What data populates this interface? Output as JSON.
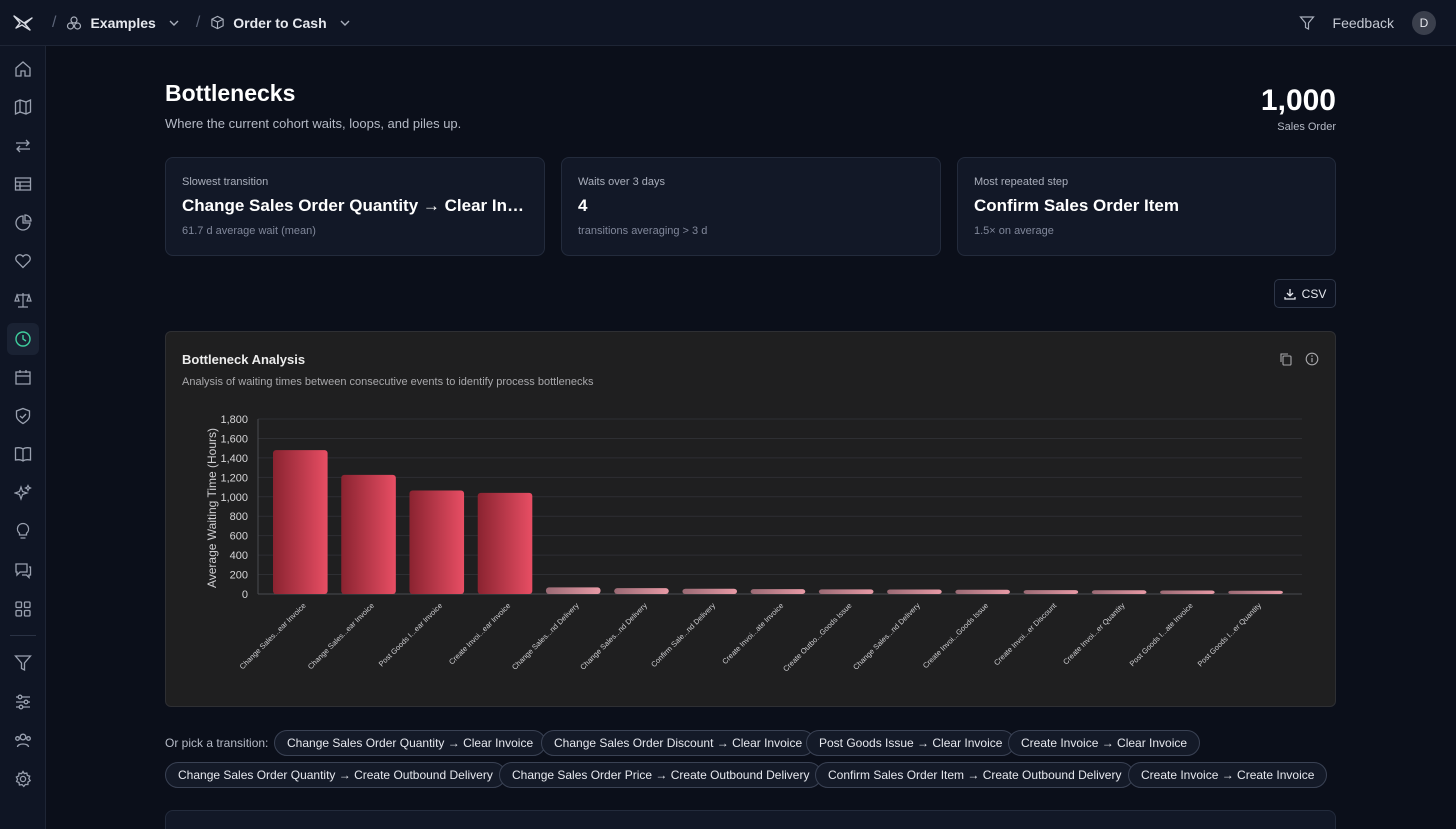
{
  "breadcrumb": {
    "workspace": "Examples",
    "process": "Order to Cash"
  },
  "topbar": {
    "feedback": "Feedback",
    "avatar_initial": "D"
  },
  "sidebar": {
    "items": [
      "home-icon",
      "map-icon",
      "arrows-icon",
      "table-icon",
      "pie-chart-icon",
      "heart-icon",
      "scale-icon",
      "clock-icon",
      "calendar-icon",
      "shield-check-icon",
      "book-icon",
      "sparkles-icon",
      "lightbulb-icon",
      "chat-icon",
      "apps-grid-icon",
      "filter-icon",
      "sliders-icon",
      "users-icon",
      "gear-icon"
    ],
    "active": "clock-icon"
  },
  "header": {
    "title": "Bottlenecks",
    "subtitle": "Where the current cohort waits, loops, and piles up.",
    "count_value": "1,000",
    "count_label": "Sales Order"
  },
  "cards": [
    {
      "label": "Slowest transition",
      "value": "Change Sales Order Quantity → Clear Invoice",
      "note": "61.7 d average wait (mean)"
    },
    {
      "label": "Waits over 3 days",
      "value": "4",
      "note": "transitions averaging > 3 d"
    },
    {
      "label": "Most repeated step",
      "value": "Confirm Sales Order Item",
      "note": "1.5× on average"
    }
  ],
  "csv_label": "CSV",
  "panel": {
    "title": "Bottleneck Analysis",
    "description": "Analysis of waiting times between consecutive events to identify process bottlenecks"
  },
  "chart_data": {
    "type": "bar",
    "title": "",
    "xlabel": "",
    "ylabel": "Average Waiting Time (Hours)",
    "ylim": [
      0,
      1800
    ],
    "yticks": [
      "0",
      "200",
      "400",
      "600",
      "800",
      "1,000",
      "1,200",
      "1,400",
      "1,600",
      "1,800"
    ],
    "categories": [
      "Change Sales...ear Invoice",
      "Change Sales...ear Invoice",
      "Post Goods I...ear Invoice",
      "Create Invoi...ear Invoice",
      "Change Sales...nd Delivery",
      "Change Sales...nd Delivery",
      "Confirm Sale...nd Delivery",
      "Create Invoi...ate Invoice",
      "Create Outbo...Goods Issue",
      "Change Sales...nd Delivery",
      "Create Invoi...Goods Issue",
      "Create Invoi...er Discount",
      "Create Invoi...er Quantity",
      "Post Goods I...ate Invoice",
      "Post Goods I...er Quantity"
    ],
    "values": [
      1480,
      1225,
      1065,
      1040,
      68,
      60,
      54,
      50,
      48,
      46,
      44,
      40,
      38,
      36,
      34
    ],
    "grid": true,
    "bar_color": "#d9475b"
  },
  "pick": {
    "label": "Or pick a transition:",
    "chips": [
      "Change Sales Order Quantity → Clear Invoice",
      "Change Sales Order Discount → Clear Invoice",
      "Post Goods Issue → Clear Invoice",
      "Create Invoice → Clear Invoice",
      "Change Sales Order Quantity → Create Outbound Delivery",
      "Change Sales Order Price → Create Outbound Delivery",
      "Confirm Sales Order Item → Create Outbound Delivery",
      "Create Invoice → Create Invoice"
    ]
  }
}
